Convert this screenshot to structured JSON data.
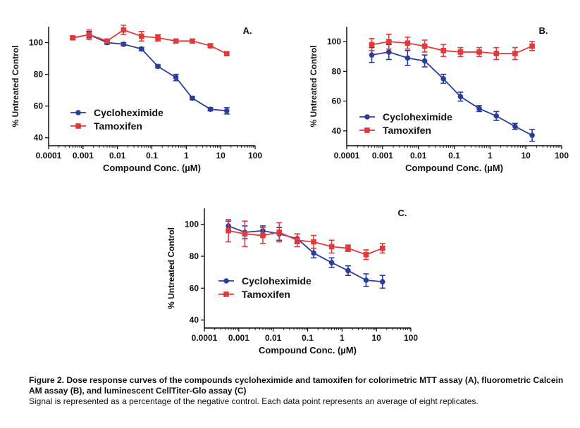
{
  "chart_data": [
    {
      "type": "line",
      "title": "A.",
      "xlabel": "Compound Conc. (µM)",
      "ylabel": "% Untreated Control",
      "x_scale": "log",
      "xlim": [
        0.0001,
        100
      ],
      "ylim": [
        35,
        110
      ],
      "x_ticks": [
        0.0001,
        0.001,
        0.01,
        0.1,
        1,
        10,
        100
      ],
      "x_tick_labels": [
        "0.0001",
        "0.001",
        "0.01",
        "0.1",
        "1",
        "10",
        "100"
      ],
      "y_ticks": [
        40,
        60,
        80,
        100
      ],
      "y_tick_labels": [
        "40",
        "60",
        "80",
        "100"
      ],
      "legend_position": "lower-left",
      "series": [
        {
          "name": "Cycloheximide",
          "color": "#2b3d9c",
          "marker": "circle",
          "x": [
            0.0005,
            0.0015,
            0.005,
            0.015,
            0.05,
            0.15,
            0.5,
            1.5,
            5,
            15
          ],
          "y": [
            103,
            105,
            100,
            99,
            96,
            85,
            78,
            65,
            58,
            57
          ],
          "err": [
            1,
            2,
            1,
            1,
            1,
            1,
            2,
            1,
            1,
            2
          ]
        },
        {
          "name": "Tamoxifen",
          "color": "#e23a3a",
          "marker": "square",
          "x": [
            0.0005,
            0.0015,
            0.005,
            0.015,
            0.05,
            0.15,
            0.5,
            1.5,
            5,
            15
          ],
          "y": [
            103,
            105,
            101,
            108,
            104,
            103,
            101,
            101,
            98,
            93
          ],
          "err": [
            1,
            3,
            1,
            3,
            3,
            2,
            1,
            1,
            1,
            1
          ]
        }
      ]
    },
    {
      "type": "line",
      "title": "B.",
      "xlabel": "Compound Conc. (µM)",
      "ylabel": "% Untreated Control",
      "x_scale": "log",
      "xlim": [
        0.0001,
        100
      ],
      "ylim": [
        30,
        110
      ],
      "x_ticks": [
        0.0001,
        0.001,
        0.01,
        0.1,
        1,
        10,
        100
      ],
      "x_tick_labels": [
        "0.0001",
        "0.001",
        "0.01",
        "0.1",
        "1",
        "10",
        "100"
      ],
      "y_ticks": [
        40,
        60,
        80,
        100
      ],
      "y_tick_labels": [
        "40",
        "60",
        "80",
        "100"
      ],
      "legend_position": "lower-left",
      "series": [
        {
          "name": "Cycloheximide",
          "color": "#2b3d9c",
          "marker": "circle",
          "x": [
            0.0005,
            0.0015,
            0.005,
            0.015,
            0.05,
            0.15,
            0.5,
            1.5,
            5,
            15
          ],
          "y": [
            91,
            93,
            89,
            87,
            75,
            63,
            55,
            50,
            43,
            37
          ],
          "err": [
            5,
            5,
            5,
            4,
            3,
            3,
            2,
            3,
            2,
            4
          ]
        },
        {
          "name": "Tamoxifen",
          "color": "#e23a3a",
          "marker": "square",
          "x": [
            0.0005,
            0.0015,
            0.005,
            0.015,
            0.05,
            0.15,
            0.5,
            1.5,
            5,
            15
          ],
          "y": [
            98,
            100,
            99,
            97,
            94,
            93,
            93,
            92,
            92,
            97
          ],
          "err": [
            4,
            5,
            4,
            4,
            4,
            3,
            3,
            4,
            4,
            3
          ]
        }
      ]
    },
    {
      "type": "line",
      "title": "C.",
      "xlabel": "Compound Conc. (µM)",
      "ylabel": "% Untreated Control",
      "x_scale": "log",
      "xlim": [
        0.0001,
        100
      ],
      "ylim": [
        35,
        110
      ],
      "x_ticks": [
        0.0001,
        0.001,
        0.01,
        0.1,
        1,
        10,
        100
      ],
      "x_tick_labels": [
        "0.0001",
        "0.001",
        "0.01",
        "0.1",
        "1",
        "10",
        "100"
      ],
      "y_ticks": [
        40,
        60,
        80,
        100
      ],
      "y_tick_labels": [
        "40",
        "60",
        "80",
        "100"
      ],
      "legend_position": "lower-left",
      "series": [
        {
          "name": "Cycloheximide",
          "color": "#2b3d9c",
          "marker": "circle",
          "x": [
            0.0005,
            0.0015,
            0.005,
            0.015,
            0.05,
            0.15,
            0.5,
            1.5,
            5,
            15
          ],
          "y": [
            99,
            95,
            96,
            94,
            91,
            82,
            76,
            71,
            65,
            64
          ],
          "err": [
            3,
            4,
            3,
            4,
            3,
            3,
            3,
            3,
            4,
            4
          ]
        },
        {
          "name": "Tamoxifen",
          "color": "#e23a3a",
          "marker": "square",
          "x": [
            0.0005,
            0.0015,
            0.005,
            0.015,
            0.05,
            0.15,
            0.5,
            1.5,
            5,
            15
          ],
          "y": [
            96,
            94,
            93,
            95,
            90,
            89,
            86,
            85,
            81,
            85
          ],
          "err": [
            7,
            8,
            5,
            6,
            4,
            4,
            4,
            2,
            3,
            3
          ]
        }
      ]
    }
  ],
  "caption": {
    "title": "Figure 2. Dose response curves of the compounds cycloheximide and tamoxifen for colorimetric MTT assay (A), fluorometric Calcein AM assay (B), and luminescent CellTiter-Glo assay (C)",
    "body": "Signal is represented as a percentage of the negative control. Each data point represents an average of eight replicates."
  }
}
